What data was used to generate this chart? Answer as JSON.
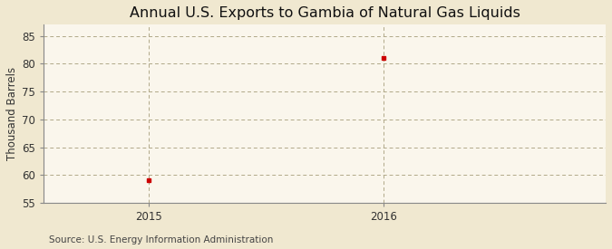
{
  "title": "Annual U.S. Exports to Gambia of Natural Gas Liquids",
  "ylabel": "Thousand Barrels",
  "source": "Source: U.S. Energy Information Administration",
  "x": [
    2015,
    2016
  ],
  "y": [
    59,
    81
  ],
  "xlim": [
    2014.55,
    2016.95
  ],
  "ylim": [
    55,
    87
  ],
  "yticks": [
    55,
    60,
    65,
    70,
    75,
    80,
    85
  ],
  "xticks": [
    2015,
    2016
  ],
  "background_color": "#f0e8d0",
  "plot_bg_color": "#faf6ec",
  "marker_color": "#cc0000",
  "grid_color": "#b0a888",
  "vline_color": "#b0a888",
  "title_fontsize": 11.5,
  "label_fontsize": 8.5,
  "tick_fontsize": 8.5,
  "source_fontsize": 7.5
}
